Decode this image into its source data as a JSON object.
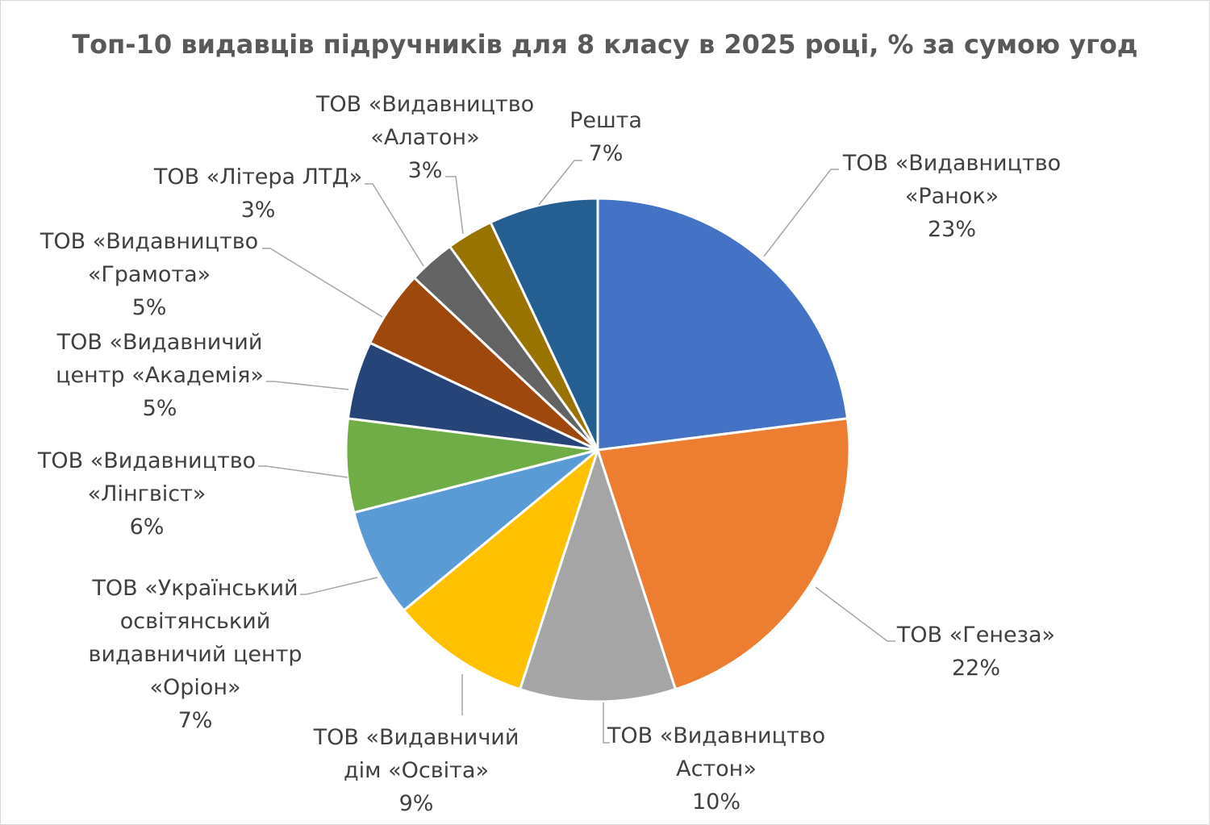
{
  "chart_data": {
    "type": "pie",
    "title": "Топ-10 видавців підручників для 8 класу в 2025 році, % за сумою угод",
    "legend": "none",
    "slices": [
      {
        "label": [
          "ТОВ «Видавництво",
          "«Ранок»"
        ],
        "value": 23,
        "value_label": "23%",
        "color": "#4472C4"
      },
      {
        "label": [
          "ТОВ «Генеза»"
        ],
        "value": 22,
        "value_label": "22%",
        "color": "#ED7D31"
      },
      {
        "label": [
          "ТОВ «Видавництво",
          "Астон»"
        ],
        "value": 10,
        "value_label": "10%",
        "color": "#A5A5A5"
      },
      {
        "label": [
          "ТОВ «Видавничий",
          "дім «Освіта»"
        ],
        "value": 9,
        "value_label": "9%",
        "color": "#FFC000"
      },
      {
        "label": [
          "ТОВ «Український",
          "освітянський",
          "видавничий центр",
          "«Оріон»"
        ],
        "value": 7,
        "value_label": "7%",
        "color": "#5B9BD5"
      },
      {
        "label": [
          "ТОВ «Видавництво",
          "«Лінгвіст»"
        ],
        "value": 6,
        "value_label": "6%",
        "color": "#70AD47"
      },
      {
        "label": [
          "ТОВ «Видавничий",
          "центр «Академія»"
        ],
        "value": 5,
        "value_label": "5%",
        "color": "#264478"
      },
      {
        "label": [
          "ТОВ «Видавництво",
          "«Грамота»"
        ],
        "value": 5,
        "value_label": "5%",
        "color": "#9E480E"
      },
      {
        "label": [
          "ТОВ «Літера ЛТД»"
        ],
        "value": 3,
        "value_label": "3%",
        "color": "#636363"
      },
      {
        "label": [
          "ТОВ «Видавництво",
          "«Алатон»"
        ],
        "value": 3,
        "value_label": "3%",
        "color": "#997300"
      },
      {
        "label": [
          "Решта"
        ],
        "value": 7,
        "value_label": "7%",
        "color": "#255E91"
      }
    ]
  }
}
